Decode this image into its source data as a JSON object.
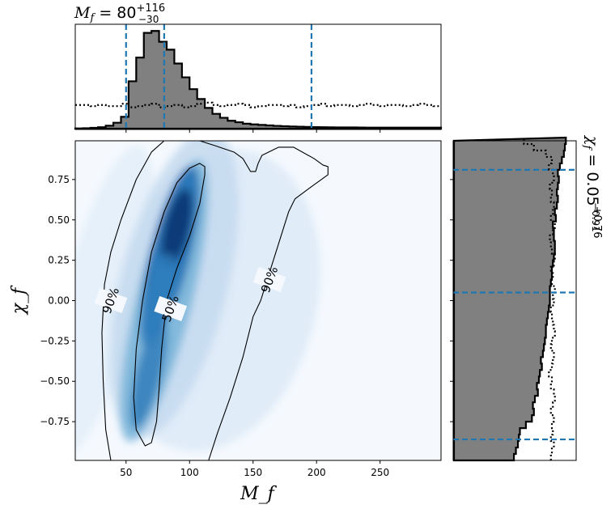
{
  "chart_data": [
    {
      "type": "histogram",
      "panel": "top-marginal",
      "title": "M_f = 80^{+116}_{-30}",
      "title_parts": {
        "lhs": "M",
        "sub": "f",
        "eq": " = 80",
        "up": "+116",
        "down": "−30"
      },
      "xlim": [
        10,
        298
      ],
      "bin_width": 6,
      "bin_starts": [
        10,
        16,
        22,
        28,
        34,
        40,
        46,
        52,
        58,
        64,
        70,
        76,
        82,
        88,
        94,
        100,
        106,
        112,
        118,
        124,
        130,
        136,
        142,
        148,
        154,
        160,
        166,
        172,
        178,
        184,
        190,
        196,
        202,
        208,
        214,
        220,
        226,
        232,
        238,
        244,
        250,
        256,
        262,
        268,
        274,
        280,
        286,
        292
      ],
      "posterior_density": [
        0.2,
        0.4,
        0.8,
        1.5,
        3,
        6,
        12,
        48,
        72,
        97,
        99,
        88,
        80,
        66,
        52,
        40,
        30,
        21,
        15,
        11,
        8,
        6.5,
        5,
        4.3,
        3.8,
        3.3,
        2.8,
        2.5,
        2.2,
        2,
        1.8,
        1.6,
        1.5,
        1.4,
        1.3,
        1.2,
        1.2,
        1.1,
        1,
        1,
        1,
        1,
        1,
        1,
        1,
        1,
        1,
        1
      ],
      "prior_density": [
        20,
        20,
        19,
        20,
        19,
        19,
        21,
        18,
        19,
        20,
        21,
        18,
        19,
        20,
        18,
        19,
        21,
        22,
        20,
        19,
        20,
        21,
        20,
        18,
        19,
        20,
        20,
        19,
        20,
        18,
        19,
        20,
        21,
        19,
        20,
        20,
        19,
        20,
        21,
        20,
        19,
        20,
        20,
        19,
        20,
        21,
        20,
        19
      ],
      "dashed_lines_x": [
        50,
        80,
        196
      ],
      "dashed_color": "#1f77b4",
      "posterior_fill": "#808080"
    },
    {
      "type": "heatmap",
      "panel": "joint",
      "xlabel": "M_f",
      "ylabel": "χ_f",
      "xlim": [
        10,
        298
      ],
      "ylim": [
        -0.99,
        0.99
      ],
      "xticks": [
        50,
        100,
        150,
        200,
        250
      ],
      "xtick_labels": [
        "50",
        "100",
        "150",
        "200",
        "250"
      ],
      "yticks": [
        -0.75,
        -0.5,
        -0.25,
        0.0,
        0.25,
        0.5,
        0.75
      ],
      "ytick_labels": [
        "−0.75",
        "−0.50",
        "−0.25",
        "0.00",
        "0.25",
        "0.50",
        "0.75"
      ],
      "colormap": "Blues",
      "contours": [
        {
          "level": "50%",
          "points": [
            [
              65,
              -0.9
            ],
            [
              58,
              -0.8
            ],
            [
              56,
              -0.6
            ],
            [
              58,
              -0.3
            ],
            [
              63,
              0
            ],
            [
              70,
              0.3
            ],
            [
              80,
              0.55
            ],
            [
              90,
              0.73
            ],
            [
              100,
              0.82
            ],
            [
              108,
              0.85
            ],
            [
              112,
              0.83
            ],
            [
              112,
              0.78
            ],
            [
              108,
              0.6
            ],
            [
              100,
              0.4
            ],
            [
              90,
              0.2
            ],
            [
              82,
              0
            ],
            [
              78,
              -0.3
            ],
            [
              76,
              -0.55
            ],
            [
              74,
              -0.75
            ],
            [
              70,
              -0.88
            ]
          ]
        },
        {
          "level": "90%",
          "points": [
            [
              38,
              -0.99
            ],
            [
              34,
              -0.8
            ],
            [
              32,
              -0.5
            ],
            [
              31,
              -0.2
            ],
            [
              33,
              0.1
            ],
            [
              38,
              0.3
            ],
            [
              46,
              0.5
            ],
            [
              58,
              0.75
            ],
            [
              70,
              0.92
            ],
            [
              80,
              0.99
            ],
            [
              108,
              0.99
            ],
            [
              120,
              0.96
            ],
            [
              135,
              0.92
            ],
            [
              142,
              0.88
            ],
            [
              148,
              0.8
            ],
            [
              152,
              0.8
            ],
            [
              154,
              0.85
            ],
            [
              157,
              0.9
            ],
            [
              170,
              0.95
            ],
            [
              182,
              0.95
            ],
            [
              198,
              0.88
            ],
            [
              205,
              0.84
            ],
            [
              209,
              0.83
            ],
            [
              209,
              0.78
            ],
            [
              195,
              0.7
            ],
            [
              183,
              0.63
            ],
            [
              178,
              0.55
            ],
            [
              170,
              0.35
            ],
            [
              162,
              0.15
            ],
            [
              156,
              0
            ],
            [
              150,
              -0.1
            ],
            [
              142,
              -0.35
            ],
            [
              132,
              -0.6
            ],
            [
              122,
              -0.82
            ],
            [
              115,
              -0.99
            ]
          ]
        }
      ],
      "contour_labels": [
        {
          "text": "90%",
          "x": 38,
          "y": 0.0
        },
        {
          "text": "50%",
          "x": 85,
          "y": -0.05
        },
        {
          "text": "90%",
          "x": 163,
          "y": 0.13
        }
      ]
    },
    {
      "type": "histogram",
      "panel": "right-marginal",
      "orientation": "horizontal",
      "title": "χ_f = 0.05^{+0.76}_{−0.91}",
      "title_parts": {
        "lhs": "χ",
        "sub": "f",
        "eq": " = 0.05",
        "up": "+0.76",
        "down": "−0.91"
      },
      "ylim": [
        -0.99,
        0.99
      ],
      "bin_width": 0.04,
      "posterior_density": [
        60,
        62,
        64,
        65,
        66,
        72,
        78,
        80,
        79,
        81,
        84,
        83,
        85,
        86,
        88,
        87,
        89,
        90,
        91,
        92,
        92,
        93,
        94,
        95,
        96,
        96,
        96,
        97,
        98,
        98,
        99,
        100,
        101,
        101,
        100,
        100,
        99,
        102,
        101,
        103,
        104,
        103,
        104,
        105,
        104,
        106,
        108,
        110,
        111,
        112
      ],
      "prior_density": [
        97,
        98,
        100,
        97,
        99,
        98,
        100,
        97,
        99,
        101,
        100,
        97,
        98,
        95,
        98,
        99,
        100,
        97,
        98,
        101,
        100,
        99,
        98,
        97,
        100,
        99,
        101,
        98,
        99,
        97,
        100,
        101,
        98,
        97,
        96,
        99,
        101,
        97,
        99,
        100,
        97,
        98,
        96,
        100,
        99,
        95,
        98,
        92,
        80,
        70
      ],
      "dashed_lines_y": [
        0.81,
        0.05,
        -0.86
      ],
      "dashed_color": "#1f77b4",
      "posterior_fill": "#808080"
    }
  ]
}
